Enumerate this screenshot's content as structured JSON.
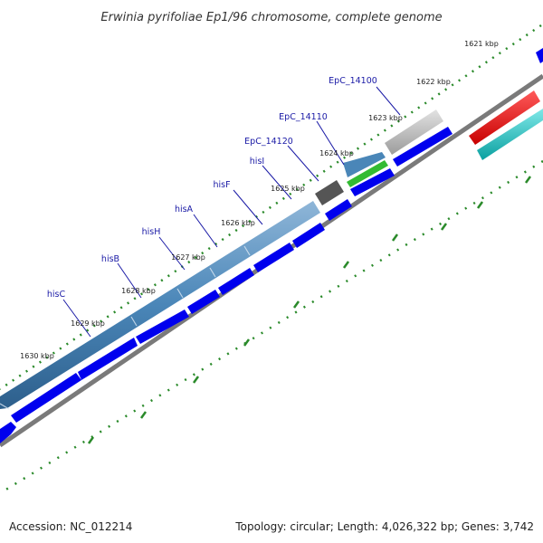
{
  "title": "Erwinia pyrifoliae Ep1/96 chromosome, complete genome",
  "footer": {
    "accession": "Accession: NC_012214",
    "summary": "Topology: circular; Length: 4,026,322 bp; Genes: 3,742"
  },
  "scale_labels": [
    "1621 kbp",
    "1622 kbp",
    "1623 kbp",
    "1624 kbp",
    "1625 kbp",
    "1626 kbp",
    "1627 kbp",
    "1628 kbp",
    "1629 kbp",
    "1630 kbp"
  ],
  "gene_labels": [
    "EpC_14100",
    "EpC_14110",
    "EpC_14120",
    "hisI",
    "hisF",
    "hisA",
    "hisH",
    "hisB",
    "hisC"
  ],
  "colors": {
    "backbone": "#7a7a7a",
    "cds": "#0000ee",
    "gene_blue": "#4a86b8",
    "gene_dark": "#555555",
    "gene_grey": "#b8b8b8",
    "gene_green": "#33bb33",
    "feature_red": "#ee0000",
    "feature_cyan": "#11c4c4",
    "tick": "#2a8a2a"
  }
}
